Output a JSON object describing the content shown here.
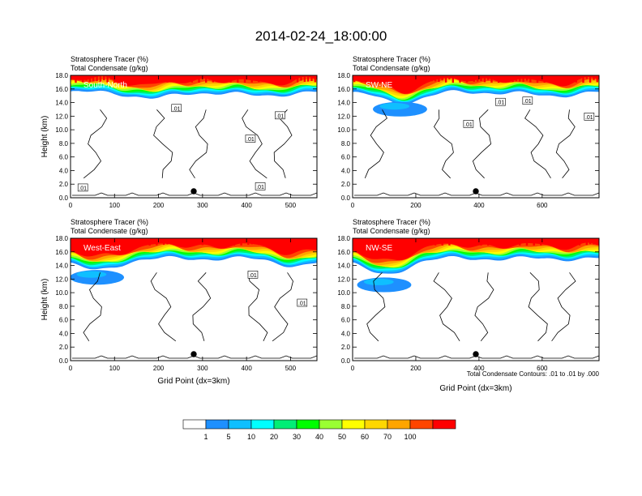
{
  "page": {
    "title": "2014-02-24_18:00:00"
  },
  "colorbar": {
    "colors": [
      "#ffffff",
      "#1e90ff",
      "#0fbfff",
      "#00ffff",
      "#00ee76",
      "#00ff00",
      "#9aff32",
      "#ffff00",
      "#ffd700",
      "#ffa500",
      "#ff4500",
      "#ff0000"
    ],
    "labels": [
      "1",
      "5",
      "10",
      "20",
      "30",
      "40",
      "50",
      "60",
      "70",
      "100"
    ]
  },
  "contour_note": "Total Condensate Contours: .01 to .01 by .000",
  "chart_data": [
    {
      "type": "heatmap",
      "panel_label": "South-North",
      "title_line1": "Stratosphere Tracer   (%)",
      "title_line2": "Total Condensate   (g/kg)",
      "ylabel": "Height (km)",
      "xlabel": "",
      "xlim": [
        0,
        560
      ],
      "ylim": [
        0,
        18
      ],
      "xticks": [
        0,
        100,
        200,
        300,
        400,
        500
      ],
      "yticks": [
        "0.0",
        "2.0",
        "4.0",
        "6.0",
        "8.0",
        "10.0",
        "12.0",
        "14.0",
        "16.0",
        "18.0"
      ],
      "marker_x": 280,
      "tracer_base_km": 15.5,
      "tracer_bumps": [
        {
          "x": 190,
          "dip": 2.5
        },
        {
          "x": 430,
          "dip": 1.5
        }
      ],
      "contour_labels": [
        ".01",
        ".01",
        ".01",
        ".01",
        ".01"
      ]
    },
    {
      "type": "heatmap",
      "panel_label": "SW-NE",
      "title_line1": "Stratosphere Tracer   (%)",
      "title_line2": "Total Condensate   (g/kg)",
      "ylabel": "",
      "xlabel": "",
      "xlim": [
        0,
        780
      ],
      "ylim": [
        0,
        18
      ],
      "xticks": [
        0,
        200,
        400,
        600
      ],
      "yticks": [
        "0.0",
        "2.0",
        "4.0",
        "6.0",
        "8.0",
        "10.0",
        "12.0",
        "14.0",
        "16.0",
        "18.0"
      ],
      "marker_x": 390,
      "tracer_base_km": 15.5,
      "tracer_bumps": [
        {
          "x": 150,
          "dip": 4.5
        },
        {
          "x": 620,
          "dip": 1.5
        }
      ],
      "contour_labels": [
        ".01",
        ".01",
        ".01",
        ".01"
      ]
    },
    {
      "type": "heatmap",
      "panel_label": "West-East",
      "title_line1": "Stratosphere Tracer   (%)",
      "title_line2": "Total Condensate   (g/kg)",
      "ylabel": "Height (km)",
      "xlabel": "Grid Point (dx=3km)",
      "xlim": [
        0,
        560
      ],
      "ylim": [
        0,
        18
      ],
      "xticks": [
        0,
        100,
        200,
        300,
        400,
        500
      ],
      "yticks": [
        "0.0",
        "2.0",
        "4.0",
        "6.0",
        "8.0",
        "10.0",
        "12.0",
        "14.0",
        "16.0",
        "18.0"
      ],
      "marker_x": 280,
      "tracer_base_km": 15.0,
      "tracer_bumps": [
        {
          "x": 60,
          "dip": 5.0
        },
        {
          "x": 520,
          "dip": 3.0
        }
      ],
      "contour_labels": [
        ".01",
        ".01"
      ]
    },
    {
      "type": "heatmap",
      "panel_label": "NW-SE",
      "title_line1": "Stratosphere Tracer   (%)",
      "title_line2": "Total Condensate   (g/kg)",
      "ylabel": "",
      "xlabel": "Grid Point (dx=3km)",
      "xlim": [
        0,
        780
      ],
      "ylim": [
        0,
        18
      ],
      "xticks": [
        0,
        200,
        400,
        600
      ],
      "yticks": [
        "0.0",
        "2.0",
        "4.0",
        "6.0",
        "8.0",
        "10.0",
        "12.0",
        "14.0",
        "16.0",
        "18.0"
      ],
      "marker_x": 390,
      "tracer_base_km": 15.0,
      "tracer_bumps": [
        {
          "x": 100,
          "dip": 7.0
        }
      ],
      "contour_labels": []
    }
  ]
}
